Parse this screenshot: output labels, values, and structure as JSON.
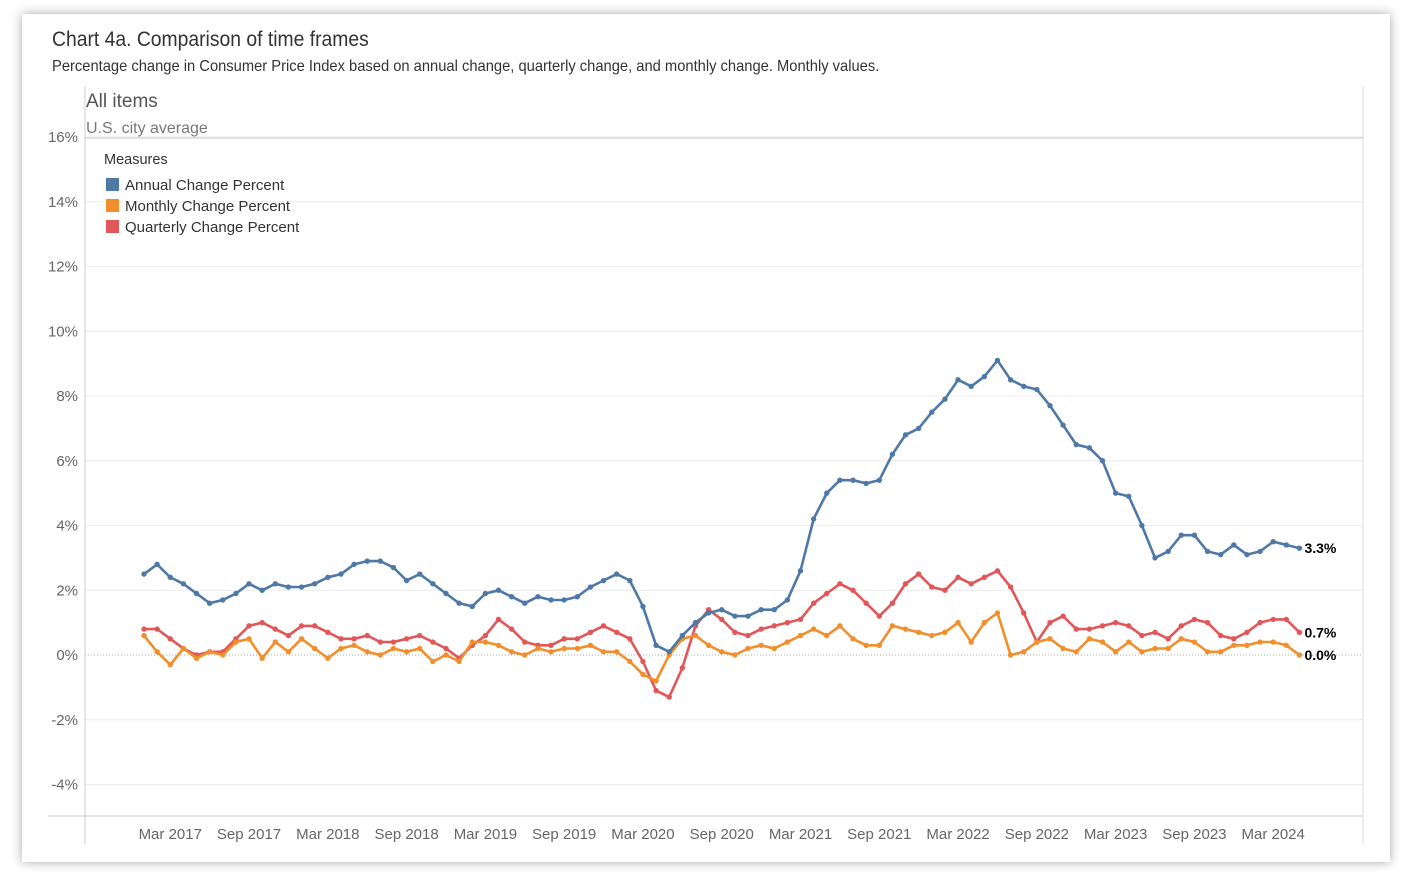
{
  "header": {
    "title": "Chart 4a. Comparison of time frames",
    "subtitle": "Percentage change in Consumer Price Index based on annual change, quarterly change, and monthly change. Monthly values."
  },
  "panel": {
    "title": "All items",
    "subtitle": "U.S. city average"
  },
  "legend": {
    "title": "Measures",
    "placement": "top-left"
  },
  "chart_data": {
    "type": "line",
    "title": "Chart 4a. Comparison of time frames",
    "ylim": [
      -5,
      16
    ],
    "y_ticks": [
      "-4%",
      "-2%",
      "0%",
      "2%",
      "4%",
      "6%",
      "8%",
      "10%",
      "12%",
      "14%",
      "16%"
    ],
    "y_tick_values": [
      -4,
      -2,
      0,
      2,
      4,
      6,
      8,
      10,
      12,
      14,
      16
    ],
    "x_start": "Jan 2017",
    "x_end": "Jun 2024",
    "x_tick_labels": [
      "Mar 2017",
      "Sep 2017",
      "Mar 2018",
      "Sep 2018",
      "Mar 2019",
      "Sep 2019",
      "Mar 2020",
      "Sep 2020",
      "Mar 2021",
      "Sep 2021",
      "Mar 2022",
      "Sep 2022",
      "Mar 2023",
      "Sep 2023",
      "Mar 2024"
    ],
    "grid": true,
    "series": [
      {
        "name": "Annual Change Percent",
        "color": "#4e79a7",
        "end_label": "3.3%",
        "values": [
          2.5,
          2.8,
          2.4,
          2.2,
          1.9,
          1.6,
          1.7,
          1.9,
          2.2,
          2.0,
          2.2,
          2.1,
          2.1,
          2.2,
          2.4,
          2.5,
          2.8,
          2.9,
          2.9,
          2.7,
          2.3,
          2.5,
          2.2,
          1.9,
          1.6,
          1.5,
          1.9,
          2.0,
          1.8,
          1.6,
          1.8,
          1.7,
          1.7,
          1.8,
          2.1,
          2.3,
          2.5,
          2.3,
          1.5,
          0.3,
          0.1,
          0.6,
          1.0,
          1.3,
          1.4,
          1.2,
          1.2,
          1.4,
          1.4,
          1.7,
          2.6,
          4.2,
          5.0,
          5.4,
          5.4,
          5.3,
          5.4,
          6.2,
          6.8,
          7.0,
          7.5,
          7.9,
          8.5,
          8.3,
          8.6,
          9.1,
          8.5,
          8.3,
          8.2,
          7.7,
          7.1,
          6.5,
          6.4,
          6.0,
          5.0,
          4.9,
          4.0,
          3.0,
          3.2,
          3.7,
          3.7,
          3.2,
          3.1,
          3.4,
          3.1,
          3.2,
          3.5,
          3.4,
          3.3
        ]
      },
      {
        "name": "Monthly Change Percent",
        "color": "#f28e2b",
        "end_label": "0.0%",
        "values": [
          0.6,
          0.1,
          -0.3,
          0.2,
          -0.1,
          0.1,
          0.0,
          0.4,
          0.5,
          -0.1,
          0.4,
          0.1,
          0.5,
          0.2,
          -0.1,
          0.2,
          0.3,
          0.1,
          0.0,
          0.2,
          0.1,
          0.2,
          -0.2,
          0.0,
          -0.2,
          0.4,
          0.4,
          0.3,
          0.1,
          0.0,
          0.2,
          0.1,
          0.2,
          0.2,
          0.3,
          0.1,
          0.1,
          -0.2,
          -0.6,
          -0.8,
          0.0,
          0.5,
          0.6,
          0.3,
          0.1,
          0.0,
          0.2,
          0.3,
          0.2,
          0.4,
          0.6,
          0.8,
          0.6,
          0.9,
          0.5,
          0.3,
          0.3,
          0.9,
          0.8,
          0.7,
          0.6,
          0.7,
          1.0,
          0.4,
          1.0,
          1.3,
          0.0,
          0.1,
          0.4,
          0.5,
          0.2,
          0.1,
          0.5,
          0.4,
          0.1,
          0.4,
          0.1,
          0.2,
          0.2,
          0.5,
          0.4,
          0.1,
          0.1,
          0.3,
          0.3,
          0.4,
          0.4,
          0.3,
          0.0
        ]
      },
      {
        "name": "Quarterly Change Percent",
        "color": "#e15759",
        "end_label": "0.7%",
        "values": [
          0.8,
          0.8,
          0.5,
          0.2,
          0.0,
          0.1,
          0.1,
          0.5,
          0.9,
          1.0,
          0.8,
          0.6,
          0.9,
          0.9,
          0.7,
          0.5,
          0.5,
          0.6,
          0.4,
          0.4,
          0.5,
          0.6,
          0.4,
          0.2,
          -0.1,
          0.3,
          0.6,
          1.1,
          0.8,
          0.4,
          0.3,
          0.3,
          0.5,
          0.5,
          0.7,
          0.9,
          0.7,
          0.5,
          -0.2,
          -1.1,
          -1.3,
          -0.4,
          0.9,
          1.4,
          1.1,
          0.7,
          0.6,
          0.8,
          0.9,
          1.0,
          1.1,
          1.6,
          1.9,
          2.2,
          2.0,
          1.6,
          1.2,
          1.6,
          2.2,
          2.5,
          2.1,
          2.0,
          2.4,
          2.2,
          2.4,
          2.6,
          2.1,
          1.3,
          0.4,
          1.0,
          1.2,
          0.8,
          0.8,
          0.9,
          1.0,
          0.9,
          0.6,
          0.7,
          0.5,
          0.9,
          1.1,
          1.0,
          0.6,
          0.5,
          0.7,
          1.0,
          1.1,
          1.1,
          0.7
        ]
      }
    ]
  }
}
